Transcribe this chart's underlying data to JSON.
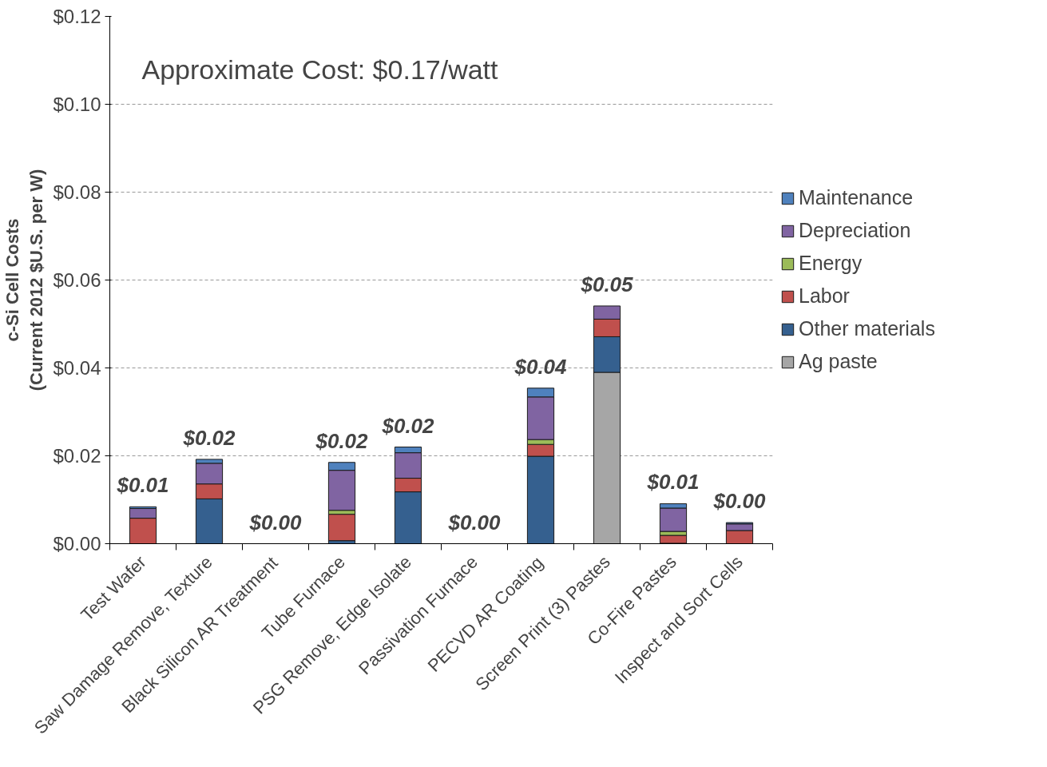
{
  "chart_data": {
    "type": "bar",
    "stacked": true,
    "ylabel": "c-Si Cell Costs\n(Current 2012 $U.S. per W)",
    "annotations": [
      "Approximate Cost:  $0.17/watt"
    ],
    "categories": [
      "Test Wafer",
      "Saw Damage Remove, Texture",
      "Black Silicon AR Treatment",
      "Tube Furnace",
      "PSG Remove, Edge Isolate",
      "Passivation Furnace",
      "PECVD AR Coating",
      "Screen Print (3) Pastes",
      "Co-Fire Pastes",
      "Inspect and Sort Cells"
    ],
    "series": [
      {
        "name": "Ag paste",
        "color": "#a6a6a6",
        "values": [
          null,
          null,
          null,
          null,
          null,
          null,
          null,
          0.039,
          null,
          null
        ]
      },
      {
        "name": "Other materials",
        "color": "#35608f",
        "values": [
          null,
          0.0102,
          null,
          0.0007,
          0.0118,
          null,
          0.0199,
          0.0081,
          0.0001,
          null
        ]
      },
      {
        "name": "Labor",
        "color": "#c0504d",
        "values": [
          0.0058,
          0.0034,
          null,
          0.006,
          0.0031,
          null,
          0.0027,
          0.004,
          0.0018,
          0.003
        ]
      },
      {
        "name": "Energy",
        "color": "#9bbb59",
        "values": [
          null,
          null,
          null,
          0.0009,
          null,
          null,
          0.0011,
          null,
          0.0009,
          null
        ]
      },
      {
        "name": "Depreciation",
        "color": "#8064a2",
        "values": [
          0.0022,
          0.0047,
          null,
          0.0091,
          0.0058,
          null,
          0.0097,
          0.003,
          0.0053,
          0.0015
        ]
      },
      {
        "name": "Maintenance",
        "color": "#4f81bd",
        "values": [
          0.0004,
          0.0009,
          null,
          0.0018,
          0.0013,
          null,
          0.002,
          null,
          0.001,
          0.0003
        ]
      }
    ],
    "totals": [
      "$0.01",
      "$0.02",
      "$0.00",
      "$0.02",
      "$0.02",
      "$0.00",
      "$0.04",
      "$0.05",
      "$0.01",
      "$0.00"
    ],
    "ylim": [
      0,
      0.12
    ],
    "yticks": [
      {
        "value": 0,
        "label": "$0.00"
      },
      {
        "value": 0.02,
        "label": "$0.02"
      },
      {
        "value": 0.04,
        "label": "$0.04"
      },
      {
        "value": 0.06,
        "label": "$0.06"
      },
      {
        "value": 0.08,
        "label": "$0.08"
      },
      {
        "value": 0.1,
        "label": "$0.10"
      },
      {
        "value": 0.12,
        "label": "$0.12"
      }
    ],
    "grid": "y",
    "legend": "right"
  }
}
